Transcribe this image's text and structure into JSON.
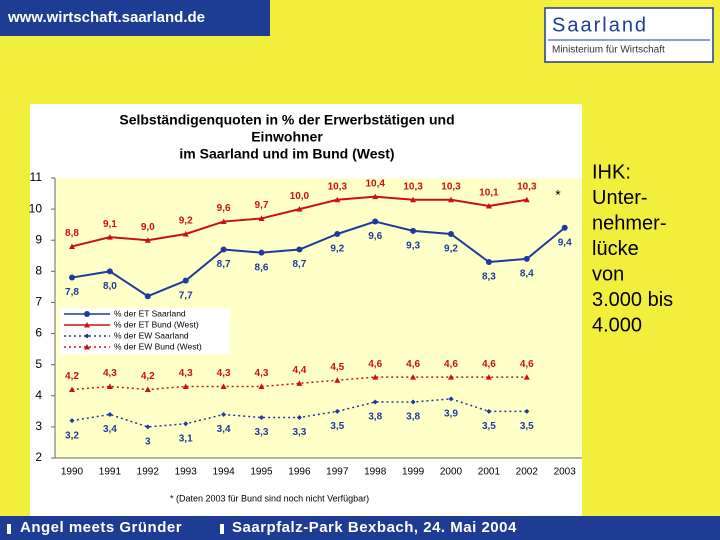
{
  "header": {
    "site": "www.wirtschaft.saarland.de",
    "logo_title": "Saarland",
    "logo_subtitle": "Ministerium für Wirtschaft"
  },
  "side_text": [
    "IHK:",
    "Unter-",
    "nehmer-",
    "lücke",
    "von",
    "3.000 bis",
    "4.000"
  ],
  "footer": [
    "Angel meets Gründer",
    "Saarpfalz-Park Bexbach, 24. Mai 2004"
  ],
  "chart_data": {
    "type": "line",
    "title": [
      "Selbständigenquoten in % der Erwerbstätigen und",
      "Einwohner",
      "im Saarland und im Bund (West)"
    ],
    "categories": [
      "1990",
      "1991",
      "1992",
      "1993",
      "1994",
      "1995",
      "1996",
      "1997",
      "1998",
      "1999",
      "2000",
      "2001",
      "2002",
      "2003"
    ],
    "ylim": [
      2,
      11
    ],
    "yticks": [
      2,
      3,
      4,
      5,
      6,
      7,
      8,
      9,
      10,
      11
    ],
    "legend": "middle-left",
    "annotation": "*",
    "footnote": "* (Daten 2003 für Bund sind noch nicht Verfügbar)",
    "series": [
      {
        "name": "% der ET Saarland",
        "color": "#1f3a9c",
        "style": "solid",
        "marker": "circle",
        "values": [
          7.8,
          8.0,
          7.2,
          7.7,
          8.7,
          8.6,
          8.7,
          9.2,
          9.6,
          9.3,
          9.2,
          8.3,
          8.4,
          9.4
        ],
        "value_labels": [
          "7,8",
          "8,0",
          null,
          "7,7",
          "8,7",
          "8,6",
          "8,7",
          "9,2",
          "9,6",
          "9,3",
          "9,2",
          "8,3",
          "8,4",
          "9,4"
        ]
      },
      {
        "name": "% der ET Bund (West)",
        "color": "#cc1010",
        "style": "solid",
        "marker": "triangle",
        "values": [
          8.8,
          9.1,
          9.0,
          9.2,
          9.6,
          9.7,
          10.0,
          10.3,
          10.4,
          10.3,
          10.3,
          10.1,
          10.3,
          null
        ],
        "value_labels": [
          "8,8",
          "9,1",
          "9,0",
          "9,2",
          "9,6",
          "9,7",
          "10,0",
          "10,3",
          "10,4",
          "10,3",
          "10,3",
          "10,1",
          "10,3",
          null
        ]
      },
      {
        "name": "% der EW Saarland",
        "color": "#1f3a9c",
        "style": "dotted",
        "marker": "diamond",
        "values": [
          3.2,
          3.4,
          3,
          3.1,
          3.4,
          3.3,
          3.3,
          3.5,
          3.8,
          3.8,
          3.9,
          3.5,
          3.5,
          null
        ],
        "value_labels": [
          "3,2",
          "3,4",
          "3",
          "3,1",
          "3,4",
          "3,3",
          "3,3",
          "3,5",
          "3,8",
          "3,8",
          "3,9",
          "3,5",
          "3,5",
          null
        ]
      },
      {
        "name": "% der EW Bund (West)",
        "color": "#cc1010",
        "style": "dotted",
        "marker": "triangle",
        "values": [
          4.2,
          4.3,
          4.2,
          4.3,
          4.3,
          4.3,
          4.4,
          4.5,
          4.6,
          4.6,
          4.6,
          4.6,
          4.6,
          null
        ],
        "value_labels": [
          "4,2",
          "4,3",
          "4,2",
          "4,3",
          "4,3",
          "4,3",
          "4,4",
          "4,5",
          "4,6",
          "4,6",
          "4,6",
          "4,6",
          "4,6",
          null
        ]
      }
    ]
  }
}
